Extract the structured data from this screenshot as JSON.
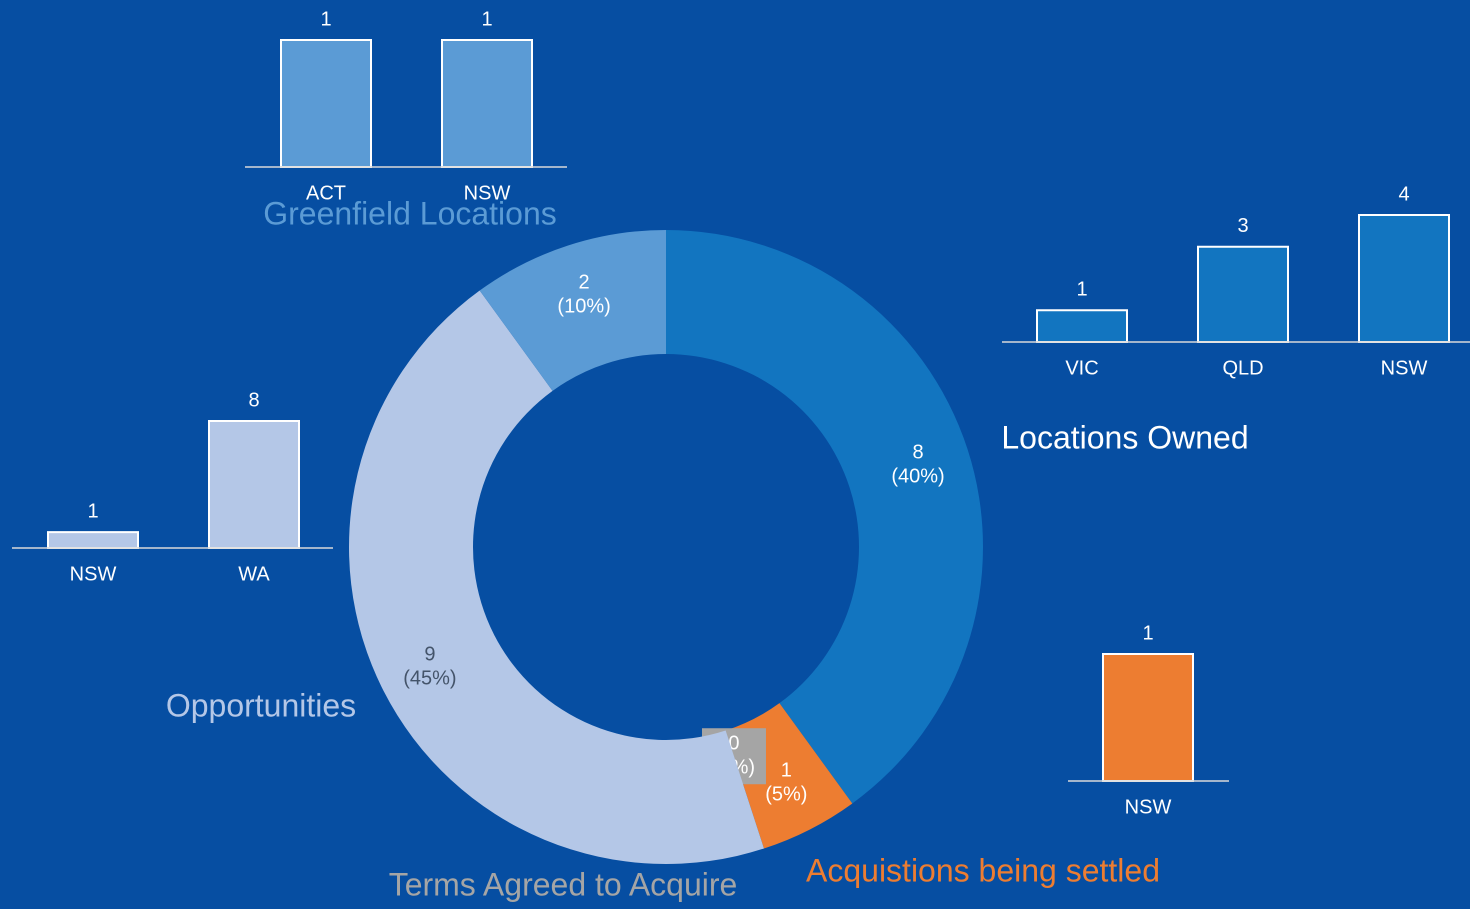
{
  "chart_data": [
    {
      "type": "donut",
      "categories": [
        "Locations Owned",
        "Acquistions being settled",
        "Terms Agreed to Acquire",
        "Opportunities",
        "Greenfield Locations"
      ],
      "values": [
        8,
        1,
        0,
        9,
        2
      ],
      "percent_labels": [
        "(40%)",
        "(5%)",
        "(0%)",
        "(45%)",
        "(10%)"
      ],
      "colors": [
        "#1275c0",
        "#ed7d31",
        "#a5a5a5",
        "#b4c7e7",
        "#5b9bd5"
      ]
    },
    {
      "type": "bar",
      "categories": [
        "ACT",
        "NSW"
      ],
      "values": [
        1,
        1
      ],
      "color": "#5b9bd5"
    },
    {
      "type": "bar",
      "categories": [
        "VIC",
        "QLD",
        "NSW"
      ],
      "values": [
        1,
        3,
        4
      ],
      "color": "#1275c0"
    },
    {
      "type": "bar",
      "categories": [
        "NSW",
        "WA"
      ],
      "values": [
        1,
        8
      ],
      "color": "#b4c7e7"
    },
    {
      "type": "bar",
      "categories": [
        "NSW"
      ],
      "values": [
        1
      ],
      "color": "#ed7d31"
    }
  ]
}
